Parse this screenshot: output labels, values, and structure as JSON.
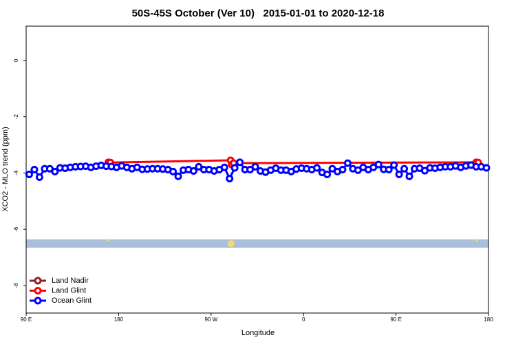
{
  "chart_data": {
    "type": "line",
    "title": "50S-45S October (Ver 10)   2015-01-01 to 2020-12-18",
    "x_label": "Longitude",
    "y_label": "XCO2 - MLO trend (ppm)",
    "xlim": [
      90,
      540
    ],
    "ylim": [
      -8.98,
      1.22
    ],
    "xticks": [
      {
        "value": 90,
        "label": "90 E"
      },
      180,
      {
        "value": 270,
        "label": "90 W"
      },
      {
        "value": 360,
        "label": "0"
      },
      {
        "value": 450,
        "label": "90 E"
      },
      {
        "value": 540,
        "label": "180"
      }
    ],
    "yticks": [
      0,
      -2,
      -4,
      -6,
      -8
    ],
    "legend": "bottom-left",
    "series": [
      {
        "name": "Land Nadir",
        "color": "#8b2323",
        "x": [],
        "values": []
      },
      {
        "name": "Land Glint",
        "color": "#ff0000",
        "x": [
          170,
          172,
          289,
          290,
          292,
          528,
          530
        ],
        "values": [
          -3.62,
          -3.63,
          -3.55,
          -3.7,
          -3.65,
          -3.62,
          -3.63
        ]
      },
      {
        "name": "Ocean Glint",
        "color": "#0000ff",
        "x": [
          93,
          98,
          103,
          108,
          113,
          118,
          123,
          128,
          133,
          138,
          143,
          148,
          153,
          158,
          163,
          168,
          173,
          178,
          183,
          188,
          193,
          198,
          203,
          208,
          213,
          218,
          223,
          228,
          233,
          238,
          243,
          248,
          253,
          258,
          263,
          268,
          273,
          278,
          283,
          288,
          293,
          298,
          303,
          308,
          313,
          318,
          323,
          328,
          333,
          338,
          343,
          348,
          353,
          358,
          363,
          368,
          373,
          378,
          383,
          388,
          393,
          398,
          403,
          408,
          413,
          418,
          423,
          428,
          433,
          438,
          443,
          448,
          453,
          458,
          463,
          468,
          473,
          478,
          483,
          488,
          493,
          498,
          503,
          508,
          513,
          518,
          523,
          528,
          533,
          538
        ],
        "values": [
          -4.05,
          -3.88,
          -4.15,
          -3.85,
          -3.85,
          -3.95,
          -3.82,
          -3.83,
          -3.8,
          -3.78,
          -3.77,
          -3.76,
          -3.8,
          -3.76,
          -3.73,
          -3.76,
          -3.77,
          -3.8,
          -3.75,
          -3.8,
          -3.85,
          -3.8,
          -3.87,
          -3.86,
          -3.85,
          -3.85,
          -3.86,
          -3.88,
          -3.95,
          -4.12,
          -3.9,
          -3.88,
          -3.93,
          -3.78,
          -3.88,
          -3.88,
          -3.93,
          -3.88,
          -3.8,
          -4.2,
          -3.82,
          -3.62,
          -3.88,
          -3.88,
          -3.78,
          -3.93,
          -3.97,
          -3.9,
          -3.83,
          -3.9,
          -3.9,
          -3.95,
          -3.86,
          -3.83,
          -3.85,
          -3.88,
          -3.82,
          -3.98,
          -4.05,
          -3.85,
          -3.95,
          -3.88,
          -3.65,
          -3.85,
          -3.9,
          -3.8,
          -3.88,
          -3.8,
          -3.7,
          -3.87,
          -3.88,
          -3.72,
          -4.05,
          -3.85,
          -4.12,
          -3.85,
          -3.83,
          -3.92,
          -3.82,
          -3.83,
          -3.8,
          -3.78,
          -3.78,
          -3.75,
          -3.8,
          -3.75,
          -3.72,
          -3.78,
          -3.78,
          -3.82
        ]
      }
    ]
  }
}
